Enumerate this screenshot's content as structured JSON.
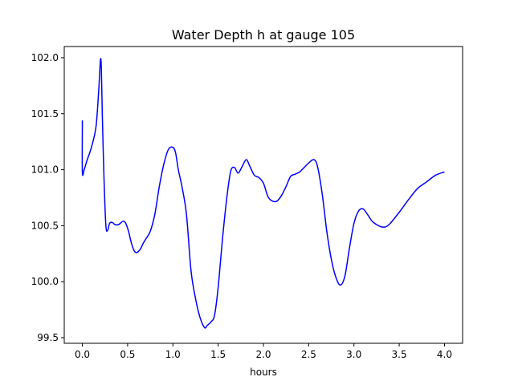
{
  "chart_data": {
    "type": "line",
    "title": "Water Depth h at gauge 105",
    "xlabel": "hours",
    "ylabel": "",
    "xlim": [
      -0.2,
      4.2
    ],
    "ylim": [
      99.45,
      102.1
    ],
    "x_ticks": [
      0.0,
      0.5,
      1.0,
      1.5,
      2.0,
      2.5,
      3.0,
      3.5,
      4.0
    ],
    "x_tick_labels": [
      "0.0",
      "0.5",
      "1.0",
      "1.5",
      "2.0",
      "2.5",
      "3.0",
      "3.5",
      "4.0"
    ],
    "y_ticks": [
      99.5,
      100.0,
      100.5,
      101.0,
      101.5,
      102.0
    ],
    "y_tick_labels": [
      "99.5",
      "100.0",
      "100.5",
      "101.0",
      "101.5",
      "102.0"
    ],
    "grid": false,
    "legend": "none",
    "series": [
      {
        "color": "#0000ff",
        "x": [
          0.0,
          0.0,
          0.02,
          0.05,
          0.1,
          0.15,
          0.18,
          0.2,
          0.21,
          0.22,
          0.24,
          0.26,
          0.28,
          0.3,
          0.33,
          0.36,
          0.4,
          0.45,
          0.48,
          0.51,
          0.54,
          0.57,
          0.6,
          0.64,
          0.67,
          0.7,
          0.75,
          0.8,
          0.85,
          0.9,
          0.95,
          1.0,
          1.03,
          1.06,
          1.1,
          1.15,
          1.2,
          1.25,
          1.3,
          1.35,
          1.38,
          1.42,
          1.46,
          1.5,
          1.55,
          1.6,
          1.64,
          1.68,
          1.72,
          1.76,
          1.81,
          1.85,
          1.9,
          1.95,
          2.0,
          2.05,
          2.1,
          2.15,
          2.2,
          2.25,
          2.3,
          2.35,
          2.4,
          2.45,
          2.5,
          2.56,
          2.6,
          2.65,
          2.7,
          2.75,
          2.8,
          2.85,
          2.9,
          2.95,
          3.0,
          3.05,
          3.1,
          3.15,
          3.2,
          3.25,
          3.3,
          3.35,
          3.4,
          3.5,
          3.6,
          3.7,
          3.8,
          3.9,
          4.0
        ],
        "y": [
          101.44,
          100.98,
          101.0,
          101.08,
          101.2,
          101.38,
          101.7,
          101.98,
          101.9,
          101.5,
          100.9,
          100.5,
          100.46,
          100.52,
          100.53,
          100.51,
          100.51,
          100.54,
          100.52,
          100.45,
          100.35,
          100.28,
          100.26,
          100.29,
          100.34,
          100.38,
          100.45,
          100.6,
          100.85,
          101.05,
          101.18,
          101.2,
          101.15,
          101.0,
          100.85,
          100.6,
          100.1,
          99.85,
          99.68,
          99.59,
          99.61,
          99.64,
          99.7,
          99.95,
          100.4,
          100.78,
          100.99,
          101.02,
          100.97,
          101.02,
          101.09,
          101.03,
          100.95,
          100.93,
          100.88,
          100.76,
          100.72,
          100.72,
          100.77,
          100.85,
          100.94,
          100.96,
          100.98,
          101.02,
          101.06,
          101.09,
          101.02,
          100.78,
          100.45,
          100.2,
          100.04,
          99.97,
          100.05,
          100.3,
          100.52,
          100.63,
          100.65,
          100.6,
          100.54,
          100.51,
          100.49,
          100.49,
          100.52,
          100.62,
          100.73,
          100.83,
          100.89,
          100.95,
          100.98
        ]
      }
    ]
  }
}
